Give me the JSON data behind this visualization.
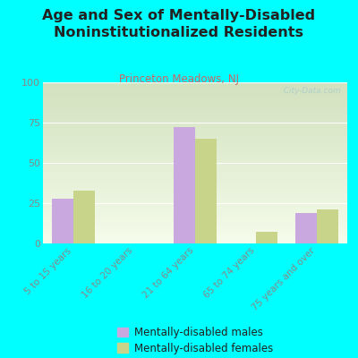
{
  "title": "Age and Sex of Mentally-Disabled\nNoninstitutionalized Residents",
  "subtitle": "Princeton Meadows, NJ",
  "categories": [
    "5 to 15 years",
    "16 to 20 years",
    "21 to 64 years",
    "65 to 74 years",
    "75 years and over"
  ],
  "males": [
    28,
    0,
    72,
    0,
    19
  ],
  "females": [
    33,
    0,
    65,
    7,
    21
  ],
  "male_color": "#c9a8e0",
  "female_color": "#c8d48a",
  "bg_color": "#00ffff",
  "ylim": [
    0,
    100
  ],
  "yticks": [
    0,
    25,
    50,
    75,
    100
  ],
  "bar_width": 0.35,
  "title_fontsize": 11.5,
  "subtitle_fontsize": 8.5,
  "subtitle_color": "#cc6666",
  "tick_color": "#888888",
  "title_color": "#222222",
  "watermark": "  City-Data.com",
  "legend_male": "Mentally-disabled males",
  "legend_female": "Mentally-disabled females",
  "legend_fontsize": 8.5,
  "legend_marker_color_male": "#c9a8e0",
  "legend_marker_color_female": "#c8d48a"
}
